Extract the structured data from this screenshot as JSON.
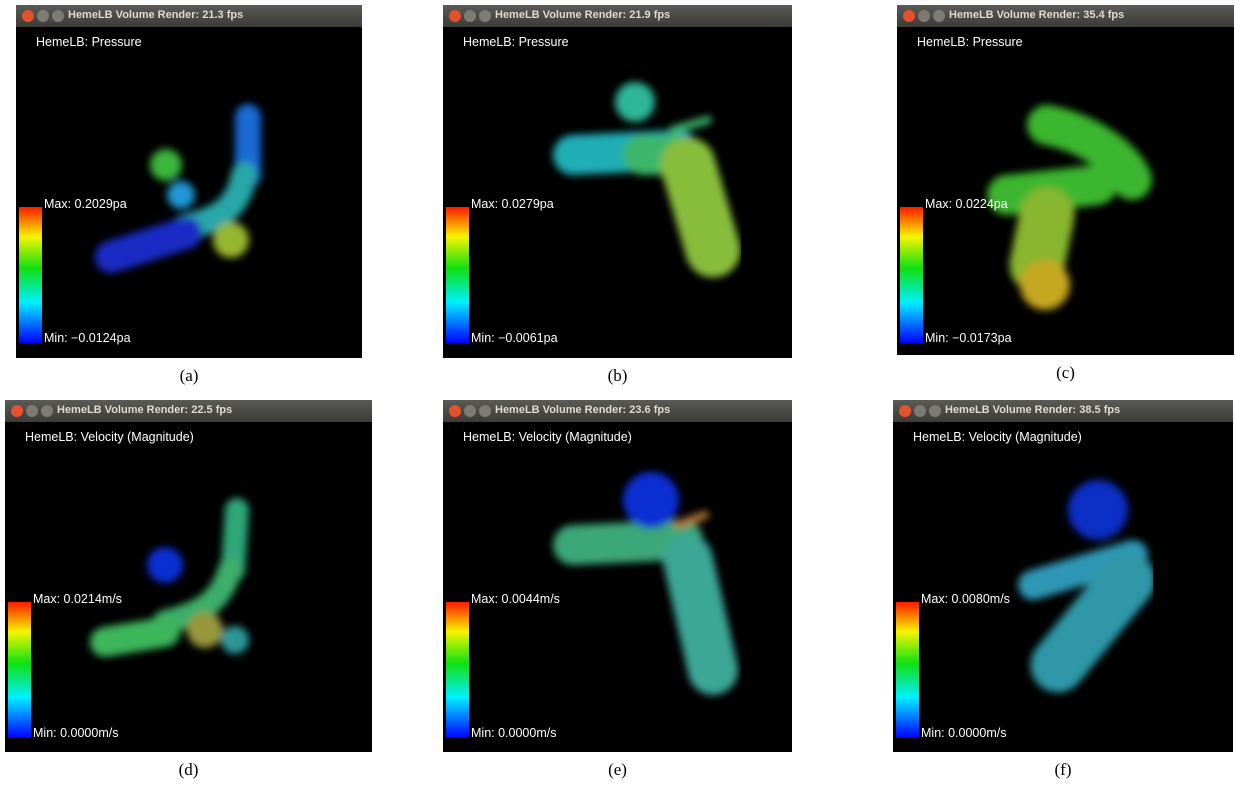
{
  "panels": [
    {
      "window_title": "HemeLB Volume Render: 21.3 fps",
      "field": "HemeLB: Pressure",
      "max": "Max: 0.2029pa",
      "min": "Min: −0.0124pa",
      "caption": "(a)"
    },
    {
      "window_title": "HemeLB Volume Render: 21.9 fps",
      "field": "HemeLB: Pressure",
      "max": "Max: 0.0279pa",
      "min": "Min: −0.0061pa",
      "caption": "(b)"
    },
    {
      "window_title": "HemeLB Volume Render: 35.4 fps",
      "field": "HemeLB: Pressure",
      "max": "Max: 0.0224pa",
      "min": "Min: −0.0173pa",
      "caption": "(c)"
    },
    {
      "window_title": "HemeLB Volume Render: 22.5 fps",
      "field": "HemeLB: Velocity (Magnitude)",
      "max": "Max: 0.0214m/s",
      "min": "Min: 0.0000m/s",
      "caption": "(d)"
    },
    {
      "window_title": "HemeLB Volume Render: 23.6 fps",
      "field": "HemeLB: Velocity (Magnitude)",
      "max": "Max: 0.0044m/s",
      "min": "Min: 0.0000m/s",
      "caption": "(e)"
    },
    {
      "window_title": "HemeLB Volume Render: 38.5 fps",
      "field": "HemeLB: Velocity (Magnitude)",
      "max": "Max: 0.0080m/s",
      "min": "Min: 0.0000m/s",
      "caption": "(f)"
    }
  ]
}
